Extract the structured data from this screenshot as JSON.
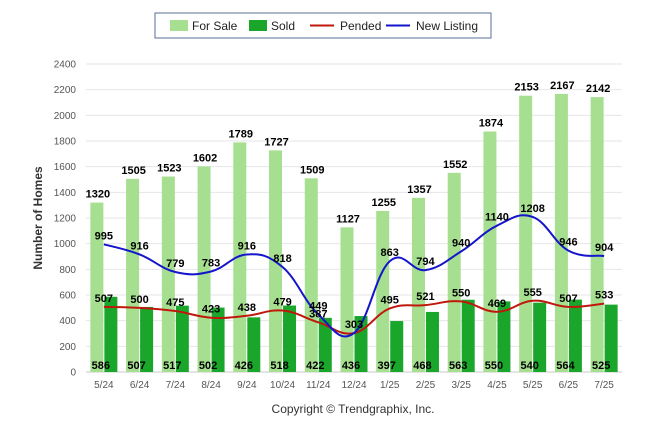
{
  "chart_data": {
    "type": "bar",
    "title": "",
    "xlabel": "",
    "ylabel": "Number of Homes",
    "ylim": [
      0,
      2400
    ],
    "yticks": [
      0,
      200,
      400,
      600,
      800,
      1000,
      1200,
      1400,
      1600,
      1800,
      2000,
      2200,
      2400
    ],
    "grid": true,
    "legend_position": "top-center",
    "categories": [
      "5/24",
      "6/24",
      "7/24",
      "8/24",
      "9/24",
      "10/24",
      "11/24",
      "12/24",
      "1/25",
      "2/25",
      "3/25",
      "4/25",
      "5/25",
      "6/25",
      "7/25"
    ],
    "series": [
      {
        "name": "For Sale",
        "kind": "bar",
        "color": "#a6df8f",
        "values": [
          1320,
          1505,
          1523,
          1602,
          1789,
          1727,
          1509,
          1127,
          1255,
          1357,
          1552,
          1874,
          2153,
          2167,
          2142
        ]
      },
      {
        "name": "Sold",
        "kind": "bar",
        "color": "#1aa62a",
        "values": [
          586,
          507,
          517,
          502,
          426,
          518,
          422,
          436,
          397,
          468,
          563,
          550,
          540,
          564,
          525
        ]
      },
      {
        "name": "Pended",
        "kind": "line",
        "color": "#c0180d",
        "values": [
          507,
          500,
          475,
          423,
          438,
          479,
          387,
          303,
          495,
          521,
          550,
          469,
          555,
          507,
          533
        ]
      },
      {
        "name": "New Listing",
        "kind": "line",
        "color": "#1515cc",
        "values": [
          995,
          916,
          779,
          783,
          916,
          818,
          449,
          303,
          863,
          794,
          940,
          1140,
          1208,
          946,
          904
        ]
      }
    ],
    "pended_labels": [
      "507",
      "500",
      "475",
      "423",
      "438",
      "479",
      "387",
      "303",
      "495",
      "521",
      "550",
      "469",
      "555",
      "507",
      "533"
    ],
    "new_listing_labels": [
      "995",
      "916",
      "779",
      "783",
      "916",
      "818",
      "449",
      "",
      "863",
      "794",
      "940",
      "1140",
      "1208",
      "946",
      "904"
    ]
  },
  "copyright": "Copyright © Trendgraphix, Inc."
}
